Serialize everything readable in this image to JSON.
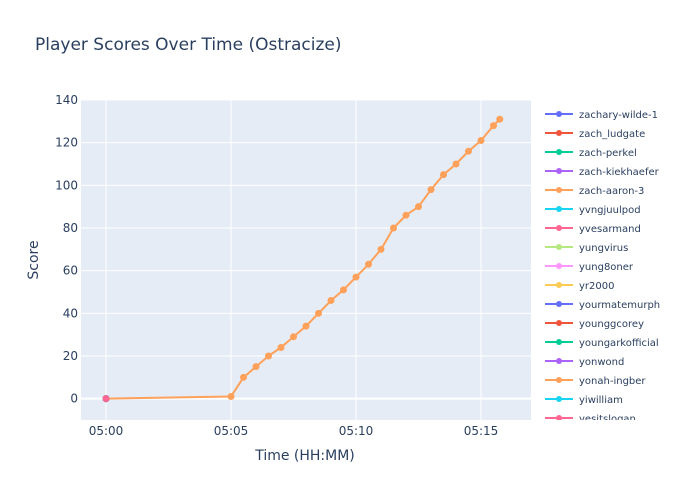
{
  "chart_data": {
    "type": "line",
    "title": "Player Scores Over Time (Ostracize)",
    "xlabel": "Time (HH:MM)",
    "ylabel": "Score",
    "xlim": [
      "04:59",
      "05:17"
    ],
    "ylim": [
      -10,
      140
    ],
    "x_ticks": [
      "05:00",
      "05:05",
      "05:10",
      "05:15"
    ],
    "y_ticks": [
      0,
      20,
      40,
      60,
      80,
      100,
      120,
      140
    ],
    "grid": true,
    "legend_placement": "right",
    "background_color": "#e5ecf6",
    "series": [
      {
        "name": "zachary-wilde-1",
        "color": "#636efa",
        "x": [
          "05:00"
        ],
        "y": [
          0
        ]
      },
      {
        "name": "zach_ludgate",
        "color": "#ef553b",
        "x": [
          "05:00"
        ],
        "y": [
          0
        ]
      },
      {
        "name": "zach-perkel",
        "color": "#00cc96",
        "x": [
          "05:00"
        ],
        "y": [
          0
        ]
      },
      {
        "name": "zach-kiekhaefer",
        "color": "#ab63fa",
        "x": [
          "05:00"
        ],
        "y": [
          0
        ]
      },
      {
        "name": "zach-aaron-3",
        "color": "#ffa15a",
        "x": [
          "05:00",
          "05:05",
          "05:05:30",
          "05:06",
          "05:06:30",
          "05:07",
          "05:07:30",
          "05:08",
          "05:08:30",
          "05:09",
          "05:09:30",
          "05:10",
          "05:10:30",
          "05:11",
          "05:11:30",
          "05:12",
          "05:12:30",
          "05:13",
          "05:13:30",
          "05:14",
          "05:14:30",
          "05:15",
          "05:15:30",
          "05:15:45"
        ],
        "y": [
          0,
          1,
          10,
          15,
          20,
          24,
          29,
          34,
          40,
          46,
          51,
          57,
          63,
          70,
          80,
          86,
          90,
          98,
          105,
          110,
          116,
          121,
          128,
          131
        ]
      },
      {
        "name": "yvngjuulpod",
        "color": "#19d3f3",
        "x": [
          "05:00"
        ],
        "y": [
          0
        ]
      },
      {
        "name": "yvesarmand",
        "color": "#ff6692",
        "x": [
          "05:00"
        ],
        "y": [
          0
        ]
      },
      {
        "name": "yungvirus",
        "color": "#b6e880",
        "x": [
          "05:00"
        ],
        "y": [
          0
        ]
      },
      {
        "name": "yung8oner",
        "color": "#ff97ff",
        "x": [
          "05:00"
        ],
        "y": [
          0
        ]
      },
      {
        "name": "yr2000",
        "color": "#fecb52",
        "x": [
          "05:00"
        ],
        "y": [
          0
        ]
      },
      {
        "name": "yourmatemurph",
        "color": "#636efa",
        "x": [
          "05:00"
        ],
        "y": [
          0
        ]
      },
      {
        "name": "younggcorey",
        "color": "#ef553b",
        "x": [
          "05:00"
        ],
        "y": [
          0
        ]
      },
      {
        "name": "youngarkofficial",
        "color": "#00cc96",
        "x": [
          "05:00"
        ],
        "y": [
          0
        ]
      },
      {
        "name": "yonwond",
        "color": "#ab63fa",
        "x": [
          "05:00"
        ],
        "y": [
          0
        ]
      },
      {
        "name": "yonah-ingber",
        "color": "#ffa15a",
        "x": [
          "05:00"
        ],
        "y": [
          0
        ]
      },
      {
        "name": "yiwilliam",
        "color": "#19d3f3",
        "x": [
          "05:00"
        ],
        "y": [
          0
        ]
      },
      {
        "name": "yesitslogan",
        "color": "#ff6692",
        "x": [
          "05:00"
        ],
        "y": [
          0
        ]
      }
    ]
  }
}
